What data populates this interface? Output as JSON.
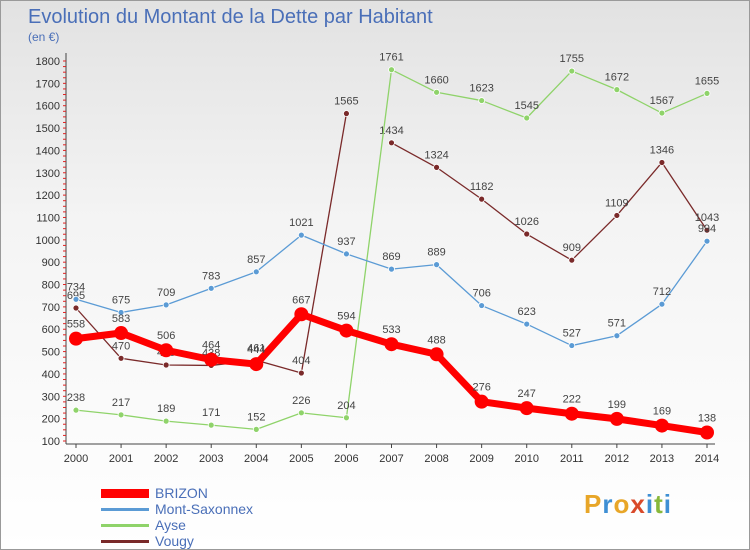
{
  "title": "Evolution du Montant de la Dette par Habitant",
  "unit_label": "(en €)",
  "logo": {
    "text": "Proxiti",
    "letter_colors": [
      "#e8a628",
      "#3e8fd4",
      "#e8a628",
      "#d94a2a",
      "#3e8fd4",
      "#88b83a",
      "#3e8fd4"
    ]
  },
  "chart_data": {
    "type": "line",
    "x": [
      2000,
      2001,
      2002,
      2003,
      2004,
      2005,
      2006,
      2007,
      2008,
      2009,
      2010,
      2011,
      2012,
      2013,
      2014
    ],
    "ylim": [
      100,
      1800
    ],
    "yticks": [
      100,
      200,
      300,
      400,
      500,
      600,
      700,
      800,
      900,
      1000,
      1100,
      1200,
      1300,
      1400,
      1500,
      1600,
      1700,
      1800
    ],
    "grid": false,
    "legend_position": "bottom-left",
    "series": [
      {
        "name": "BRIZON",
        "color": "#ff0000",
        "values": [
          558,
          583,
          506,
          464,
          444,
          667,
          594,
          533,
          488,
          276,
          247,
          222,
          199,
          169,
          138
        ]
      },
      {
        "name": "Mont-Saxonnex",
        "color": "#5b9bd5",
        "values": [
          734,
          675,
          709,
          783,
          857,
          1021,
          937,
          869,
          889,
          706,
          623,
          527,
          571,
          712,
          994
        ]
      },
      {
        "name": "Ayse",
        "color": "#8fd36a",
        "values": [
          238,
          217,
          189,
          171,
          152,
          226,
          204,
          1761,
          1660,
          1623,
          1545,
          1755,
          1672,
          1567,
          1655
        ]
      },
      {
        "name": "Vougy",
        "color": "#7a2a2a",
        "values": [
          695,
          470,
          440,
          438,
          461,
          404,
          null,
          1434,
          1324,
          1182,
          1026,
          909,
          1109,
          1346,
          1043
        ]
      }
    ],
    "extra_points": [
      {
        "series": "Vougy",
        "x": 2006,
        "value": 1565,
        "drawn_from": 2005
      }
    ],
    "annotations": [
      {
        "series": "Vougy",
        "x": 2000,
        "text": "695"
      },
      {
        "series": "Vougy",
        "x": 2001,
        "text": "470"
      },
      {
        "series": "Vougy",
        "x": 2002,
        "text": "440"
      },
      {
        "series": "Vougy",
        "x": 2003,
        "text": "438"
      },
      {
        "series": "Vougy",
        "x": 2004,
        "text": "461"
      },
      {
        "series": "Vougy",
        "x": 2005,
        "text": "404"
      },
      {
        "series": "Vougy",
        "x": 2006,
        "text": "1565"
      }
    ]
  }
}
